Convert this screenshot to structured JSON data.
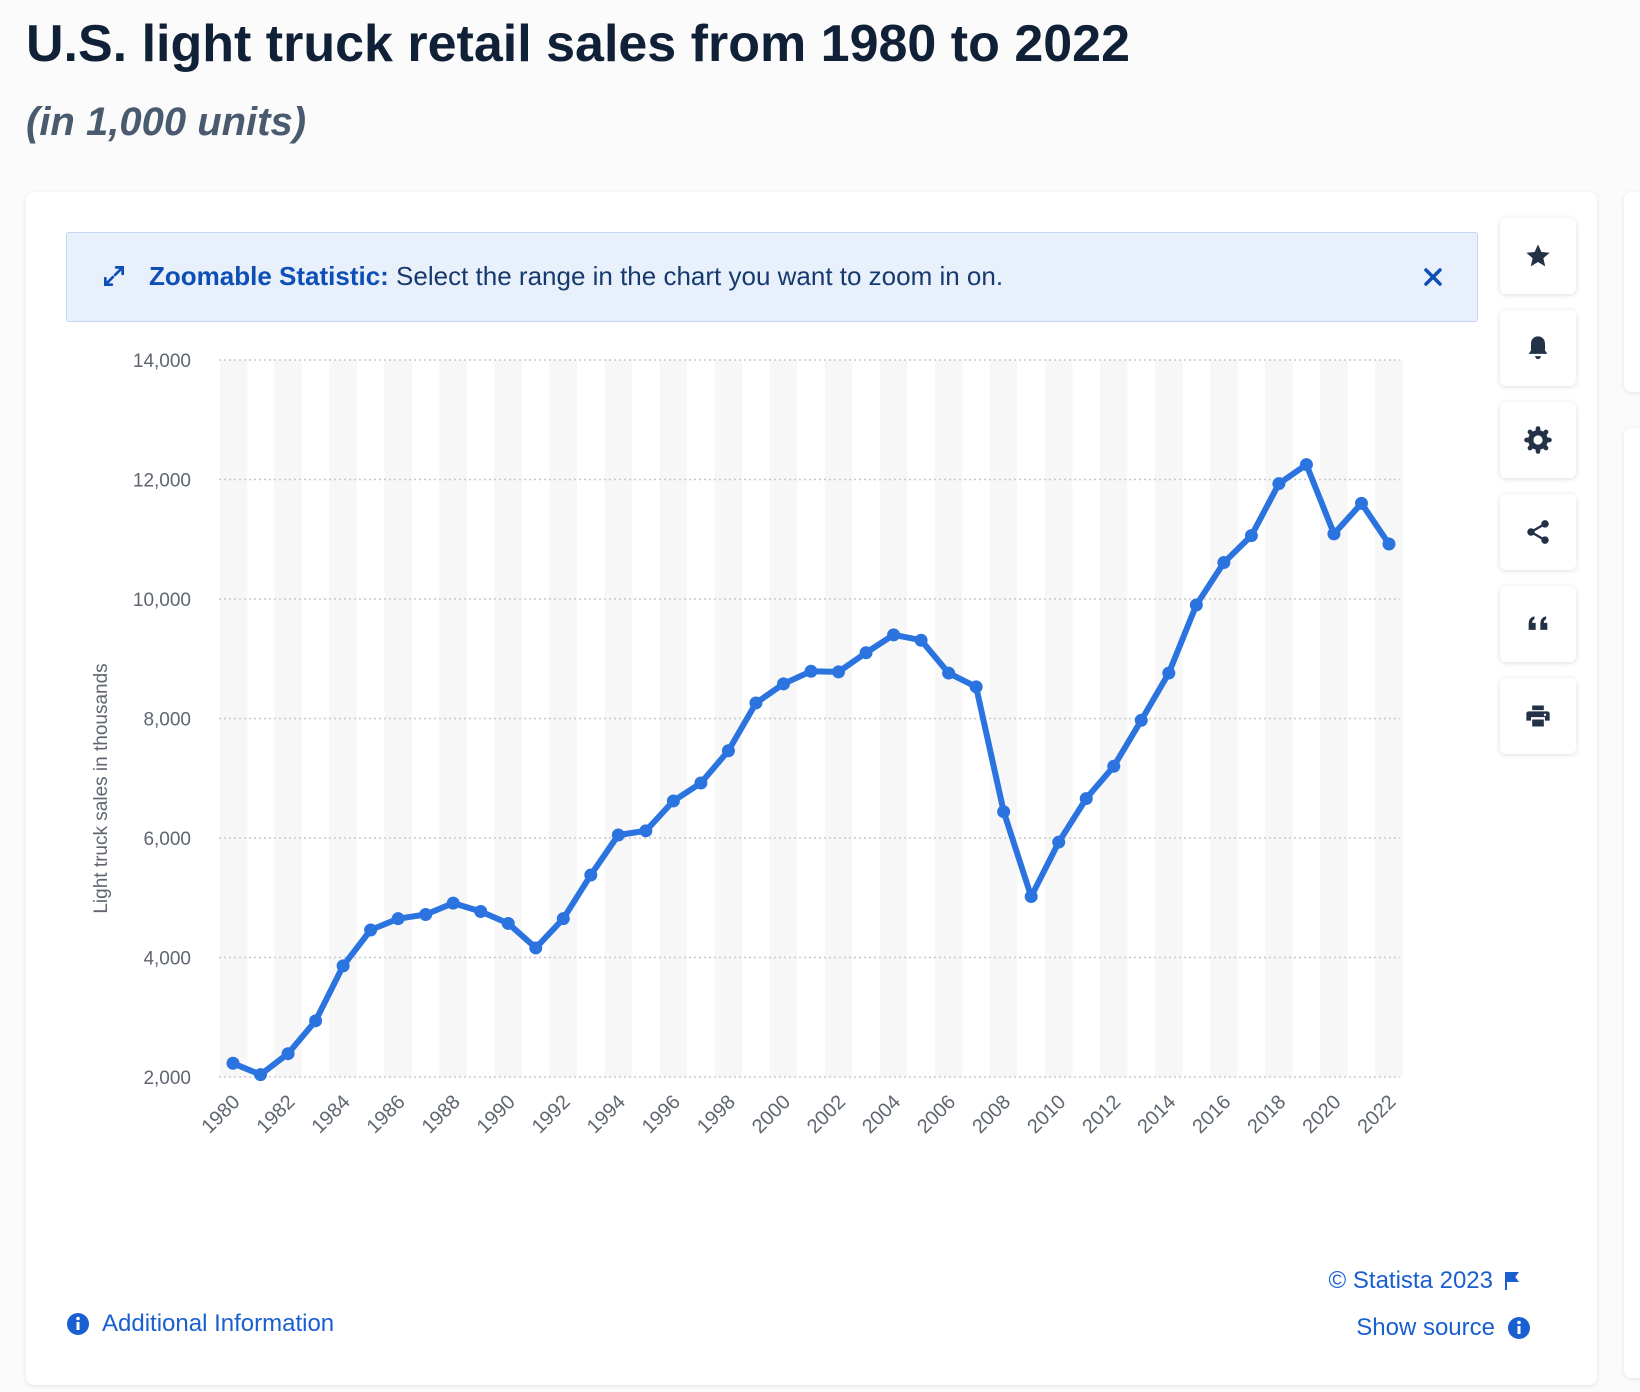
{
  "page": {
    "title": "U.S. light truck retail sales from 1980 to 2022",
    "subtitle": "(in 1,000 units)"
  },
  "banner": {
    "label": "Zoomable Statistic:",
    "text": " Select the range in the chart you want to zoom in on."
  },
  "toolbar": {
    "icons": [
      "star-icon",
      "bell-icon",
      "gear-icon",
      "share-icon",
      "quote-icon",
      "print-icon"
    ]
  },
  "footer": {
    "credit": "© Statista 2023",
    "show_source": "Show source",
    "additional_info": "Additional Information"
  },
  "colors": {
    "line": "#2b74e0",
    "accent": "#1a5fd0",
    "band": "#f7f7f7",
    "grid": "#c8c8c8"
  },
  "chart_data": {
    "type": "line",
    "title": "U.S. light truck retail sales from 1980 to 2022",
    "subtitle": "(in 1,000 units)",
    "xlabel": "",
    "ylabel": "Light truck sales in thousands",
    "ylim": [
      2000,
      14000
    ],
    "yticks": [
      2000,
      4000,
      6000,
      8000,
      10000,
      12000,
      14000
    ],
    "ytick_labels": [
      "2,000",
      "4,000",
      "6,000",
      "8,000",
      "10,000",
      "12,000",
      "14,000"
    ],
    "xtick_labels": [
      "1980",
      "1982",
      "1984",
      "1986",
      "1988",
      "1990",
      "1992",
      "1994",
      "1996",
      "1998",
      "2000",
      "2002",
      "2004",
      "2006",
      "2008",
      "2010",
      "2012",
      "2014",
      "2016",
      "2018",
      "2020",
      "2022"
    ],
    "grid": true,
    "x": [
      1980,
      1981,
      1982,
      1983,
      1984,
      1985,
      1986,
      1987,
      1988,
      1989,
      1990,
      1991,
      1992,
      1993,
      1994,
      1995,
      1996,
      1997,
      1998,
      1999,
      2000,
      2001,
      2002,
      2003,
      2004,
      2005,
      2006,
      2007,
      2008,
      2009,
      2010,
      2011,
      2012,
      2013,
      2014,
      2015,
      2016,
      2017,
      2018,
      2019,
      2020,
      2021,
      2022
    ],
    "series": [
      {
        "name": "Light truck sales",
        "values": [
          2230,
          2040,
          2390,
          2940,
          3860,
          4460,
          4650,
          4720,
          4910,
          4770,
          4570,
          4160,
          4650,
          5380,
          6050,
          6120,
          6620,
          6920,
          7460,
          8260,
          8580,
          8790,
          8780,
          9100,
          9400,
          9310,
          8760,
          8530,
          6440,
          5020,
          5930,
          6660,
          7200,
          7970,
          8760,
          9900,
          10610,
          11060,
          11930,
          12250,
          11090,
          11600,
          10920
        ]
      }
    ]
  }
}
